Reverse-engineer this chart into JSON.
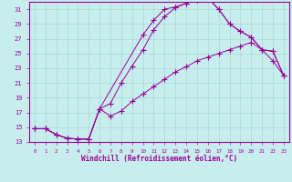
{
  "xlabel": "Windchill (Refroidissement éolien,°C)",
  "bg_color": "#c8eded",
  "grid_color": "#a8d8d8",
  "line_color": "#990099",
  "xlim": [
    -0.5,
    23.5
  ],
  "ylim": [
    13,
    32
  ],
  "xticks": [
    0,
    1,
    2,
    3,
    4,
    5,
    6,
    7,
    8,
    9,
    10,
    11,
    12,
    13,
    14,
    15,
    16,
    17,
    18,
    19,
    20,
    21,
    22,
    23
  ],
  "yticks": [
    13,
    15,
    17,
    19,
    21,
    23,
    25,
    27,
    29,
    31
  ],
  "curve1_x": [
    0,
    1,
    2,
    3,
    4,
    5,
    6,
    7,
    8,
    9,
    10,
    11,
    12,
    13,
    14,
    15,
    16,
    17,
    18,
    19,
    20,
    21,
    22,
    23
  ],
  "curve1_y": [
    14.8,
    14.8,
    14.0,
    13.5,
    13.4,
    13.4,
    17.5,
    18.2,
    21.0,
    23.3,
    25.5,
    28.2,
    30.0,
    31.2,
    31.8,
    32.3,
    32.5,
    31.0,
    29.0,
    28.0,
    27.2,
    25.5,
    25.3,
    22.0
  ],
  "curve2_x": [
    0,
    1,
    2,
    3,
    4,
    5,
    6,
    7,
    8,
    9,
    10,
    11,
    12,
    13,
    14,
    15,
    16,
    17,
    18,
    19,
    20,
    21,
    22,
    23
  ],
  "curve2_y": [
    14.8,
    14.8,
    14.0,
    13.5,
    13.4,
    13.4,
    17.5,
    16.5,
    17.2,
    18.5,
    19.5,
    20.5,
    21.5,
    22.5,
    23.2,
    24.0,
    24.5,
    25.0,
    25.5,
    26.0,
    26.5,
    25.5,
    24.0,
    22.0
  ],
  "curve3_x": [
    0,
    1,
    2,
    3,
    4,
    5,
    6,
    10,
    11,
    12,
    13,
    14,
    15,
    16,
    17,
    18,
    19,
    20,
    21,
    22,
    23
  ],
  "curve3_y": [
    14.8,
    14.8,
    14.0,
    13.5,
    13.4,
    13.4,
    17.5,
    27.5,
    29.5,
    31.0,
    31.3,
    31.8,
    32.3,
    32.5,
    31.0,
    29.0,
    28.0,
    27.2,
    25.5,
    25.3,
    22.0
  ]
}
